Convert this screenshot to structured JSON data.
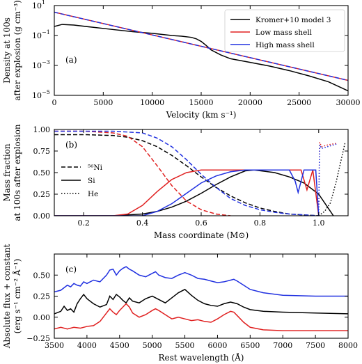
{
  "chart_data": [
    {
      "panel": "(a)",
      "type": "line",
      "xlabel": "Velocity (km s⁻¹)",
      "ylabel_line1": "Density at 100s",
      "ylabel_line2": "after explosion (g cm⁻³)",
      "xlim": [
        0,
        30000
      ],
      "ylim": [
        1e-05,
        10
      ],
      "yscale": "log",
      "xticks": [
        0,
        5000,
        10000,
        15000,
        20000,
        25000,
        30000
      ],
      "xticklabels": [
        "0",
        "5000",
        "10000",
        "15000",
        "20000",
        "25000",
        "30000"
      ],
      "yticks": [
        1e-05,
        0.001,
        0.1,
        10
      ],
      "yticklabels": [
        "10",
        "10",
        "10",
        "10"
      ],
      "yticklabels_exp": [
        "−5",
        "−3",
        "−1",
        "1"
      ],
      "legend_position": "top-right",
      "series": [
        {
          "name": "Kromer+10 model 3",
          "color": "#000000",
          "style": "solid",
          "x": [
            0,
            800,
            2000,
            4000,
            6000,
            8000,
            10000,
            12000,
            13000,
            14000,
            14500,
            15000,
            15500,
            16000,
            17000,
            18000,
            20000,
            22000,
            24000,
            26000,
            28000,
            30000
          ],
          "y": [
            0.4,
            0.55,
            0.5,
            0.35,
            0.25,
            0.18,
            0.14,
            0.1,
            0.09,
            0.075,
            0.06,
            0.04,
            0.022,
            0.011,
            0.005,
            0.0028,
            0.0016,
            0.0009,
            0.00045,
            0.0002,
            8e-05,
            2e-05
          ]
        },
        {
          "name": "Low mass shell",
          "color": "#e02020",
          "style": "solid",
          "x": [
            0,
            30000
          ],
          "y": [
            3.6,
            0.0001
          ]
        },
        {
          "name": "High mass shell",
          "color": "#2030e0",
          "style": "dashed",
          "x": [
            0,
            30000
          ],
          "y": [
            3.6,
            0.0001
          ]
        }
      ]
    },
    {
      "panel": "(b)",
      "type": "line",
      "xlabel": "Mass coordinate (M⊙)",
      "ylabel_line1": "Mass fraction",
      "ylabel_line2": "at 100s after explosion",
      "xlim": [
        0.1,
        1.1
      ],
      "ylim": [
        0,
        1.0
      ],
      "xticks": [
        0.2,
        0.4,
        0.6,
        0.8,
        1.0
      ],
      "xticklabels": [
        "0.2",
        "0.4",
        "0.6",
        "0.8",
        "1.0"
      ],
      "yticks": [
        0,
        0.25,
        0.5,
        0.75,
        1.0
      ],
      "yticklabels": [
        "0.00",
        "0.25",
        "0.50",
        "0.75",
        "1.00"
      ],
      "legend_position": "center-left",
      "legend": [
        {
          "label": "⁵⁶Ni",
          "style": "dashed"
        },
        {
          "label": "Si",
          "style": "solid"
        },
        {
          "label": "He",
          "style": "dotted"
        }
      ],
      "series": [
        {
          "element": "Ni",
          "model": "Kromer+10 model 3",
          "color": "#000000",
          "style": "dashed",
          "x": [
            0.1,
            0.2,
            0.3,
            0.35,
            0.4,
            0.45,
            0.5,
            0.55,
            0.6,
            0.65,
            0.7,
            0.75,
            0.8,
            0.85,
            0.9,
            0.95,
            1.0
          ],
          "y": [
            0.94,
            0.94,
            0.93,
            0.91,
            0.87,
            0.8,
            0.7,
            0.58,
            0.45,
            0.33,
            0.23,
            0.15,
            0.09,
            0.05,
            0.02,
            0.01,
            0.0
          ]
        },
        {
          "element": "Si",
          "model": "Kromer+10 model 3",
          "color": "#000000",
          "style": "solid",
          "x": [
            0.1,
            0.3,
            0.4,
            0.45,
            0.5,
            0.55,
            0.6,
            0.65,
            0.7,
            0.75,
            0.78,
            0.85,
            0.9,
            0.95,
            1.0,
            1.03,
            1.05
          ],
          "y": [
            0.0,
            0.0,
            0.02,
            0.05,
            0.1,
            0.17,
            0.26,
            0.36,
            0.45,
            0.52,
            0.53,
            0.5,
            0.45,
            0.38,
            0.25,
            0.1,
            0.0
          ]
        },
        {
          "element": "He",
          "model": "Kromer+10 model 3",
          "color": "#000000",
          "style": "dotted",
          "x": [
            1.0,
            1.02,
            1.04,
            1.06,
            1.08,
            1.09
          ],
          "y": [
            0.0,
            0.05,
            0.15,
            0.4,
            0.7,
            0.85
          ]
        },
        {
          "element": "Ni",
          "model": "Low mass shell",
          "color": "#e02020",
          "style": "dashed",
          "x": [
            0.1,
            0.2,
            0.3,
            0.35,
            0.4,
            0.45,
            0.5,
            0.55,
            0.6,
            0.65,
            0.7
          ],
          "y": [
            0.98,
            0.98,
            0.96,
            0.92,
            0.8,
            0.58,
            0.35,
            0.17,
            0.07,
            0.02,
            0.0
          ]
        },
        {
          "element": "Si",
          "model": "Low mass shell",
          "color": "#e02020",
          "style": "solid",
          "x": [
            0.1,
            0.3,
            0.35,
            0.4,
            0.45,
            0.5,
            0.55,
            0.6,
            0.65,
            0.7,
            0.94,
            0.96,
            0.98,
            1.0
          ],
          "y": [
            0.0,
            0.0,
            0.02,
            0.12,
            0.28,
            0.42,
            0.5,
            0.53,
            0.53,
            0.53,
            0.53,
            0.3,
            0.53,
            0.0
          ]
        },
        {
          "element": "He",
          "model": "Low mass shell",
          "color": "#e02020",
          "style": "dotted",
          "x": [
            1.0,
            1.003,
            1.01,
            1.03,
            1.06
          ],
          "y": [
            0.0,
            0.85,
            0.8,
            0.82,
            0.84
          ]
        },
        {
          "element": "Ni",
          "model": "High mass shell",
          "color": "#2030e0",
          "style": "dashed",
          "x": [
            0.1,
            0.2,
            0.3,
            0.4,
            0.45,
            0.5,
            0.55,
            0.6,
            0.65,
            0.7,
            0.75,
            0.8,
            0.85,
            0.9,
            0.95,
            1.0
          ],
          "y": [
            0.98,
            0.98,
            0.98,
            0.96,
            0.9,
            0.8,
            0.65,
            0.48,
            0.33,
            0.2,
            0.12,
            0.07,
            0.04,
            0.02,
            0.01,
            0.0
          ]
        },
        {
          "element": "Si",
          "model": "High mass shell",
          "color": "#2030e0",
          "style": "solid",
          "x": [
            0.1,
            0.4,
            0.45,
            0.5,
            0.55,
            0.6,
            0.65,
            0.7,
            0.75,
            0.8,
            0.9,
            0.92,
            0.93,
            0.94,
            0.95,
            0.99,
            1.0
          ],
          "y": [
            0.0,
            0.0,
            0.05,
            0.14,
            0.26,
            0.38,
            0.46,
            0.51,
            0.53,
            0.53,
            0.53,
            0.4,
            0.27,
            0.4,
            0.53,
            0.53,
            0.0
          ]
        },
        {
          "element": "He",
          "model": "High mass shell",
          "color": "#2030e0",
          "style": "dotted",
          "x": [
            1.0,
            1.003,
            1.01,
            1.03,
            1.06
          ],
          "y": [
            0.0,
            0.82,
            0.78,
            0.8,
            0.83
          ]
        }
      ]
    },
    {
      "panel": "(c)",
      "type": "line",
      "xlabel": "Rest wavelength (Å)",
      "ylabel_line1": "Absolute flux + constant",
      "ylabel_line2": "(erg s⁻¹ cm⁻² Å⁻¹)",
      "xlim": [
        3500,
        8000
      ],
      "ylim": [
        -0.25,
        0.75
      ],
      "xticks": [
        3500,
        4000,
        4500,
        5000,
        5500,
        6000,
        6500,
        7000,
        7500,
        8000
      ],
      "xticklabels": [
        "3500",
        "4000",
        "4500",
        "5000",
        "5500",
        "6000",
        "6500",
        "7000",
        "7500",
        "8000"
      ],
      "yticks": [
        -0.25,
        0.0,
        0.25,
        0.5
      ],
      "yticklabels": [
        "−0.25",
        "0.00",
        "0.25",
        "0.50"
      ],
      "series": [
        {
          "model": "High mass shell",
          "color": "#2030e0",
          "x": [
            3500,
            3600,
            3700,
            3750,
            3800,
            3850,
            3900,
            3950,
            4000,
            4100,
            4200,
            4300,
            4350,
            4400,
            4450,
            4500,
            4550,
            4600,
            4650,
            4700,
            4800,
            4900,
            5000,
            5050,
            5100,
            5200,
            5300,
            5400,
            5500,
            5600,
            5700,
            5800,
            5900,
            6000,
            6100,
            6200,
            6250,
            6300,
            6400,
            6500,
            6700,
            7000,
            7500,
            8000
          ],
          "y": [
            0.3,
            0.32,
            0.38,
            0.36,
            0.4,
            0.38,
            0.37,
            0.42,
            0.4,
            0.44,
            0.42,
            0.5,
            0.56,
            0.57,
            0.5,
            0.55,
            0.58,
            0.6,
            0.57,
            0.55,
            0.5,
            0.48,
            0.52,
            0.54,
            0.5,
            0.47,
            0.46,
            0.5,
            0.53,
            0.5,
            0.46,
            0.45,
            0.43,
            0.41,
            0.42,
            0.44,
            0.45,
            0.43,
            0.38,
            0.33,
            0.29,
            0.26,
            0.25,
            0.25
          ]
        },
        {
          "model": "Kromer+10 model 3",
          "color": "#000000",
          "x": [
            3500,
            3600,
            3650,
            3700,
            3750,
            3800,
            3850,
            3900,
            3950,
            4000,
            4100,
            4200,
            4300,
            4350,
            4400,
            4450,
            4500,
            4550,
            4600,
            4650,
            4700,
            4800,
            4900,
            5000,
            5100,
            5200,
            5300,
            5400,
            5500,
            5600,
            5700,
            5800,
            5900,
            6000,
            6100,
            6200,
            6300,
            6400,
            6500,
            6700,
            7000,
            7500,
            8000
          ],
          "y": [
            0.04,
            0.07,
            0.13,
            0.08,
            0.1,
            0.06,
            0.16,
            0.22,
            0.27,
            0.22,
            0.16,
            0.12,
            0.15,
            0.25,
            0.21,
            0.27,
            0.24,
            0.2,
            0.17,
            0.23,
            0.19,
            0.17,
            0.22,
            0.25,
            0.21,
            0.17,
            0.23,
            0.29,
            0.33,
            0.26,
            0.2,
            0.16,
            0.14,
            0.13,
            0.16,
            0.18,
            0.16,
            0.12,
            0.09,
            0.07,
            0.06,
            0.05,
            0.04
          ]
        },
        {
          "model": "Low mass shell",
          "color": "#e02020",
          "x": [
            3500,
            3600,
            3700,
            3800,
            3900,
            4000,
            4100,
            4200,
            4300,
            4350,
            4400,
            4450,
            4500,
            4550,
            4600,
            4650,
            4700,
            4800,
            4900,
            5000,
            5050,
            5100,
            5200,
            5300,
            5400,
            5500,
            5600,
            5700,
            5800,
            5900,
            6000,
            6100,
            6200,
            6250,
            6300,
            6400,
            6500,
            6700,
            7000,
            7500,
            8000
          ],
          "y": [
            -0.14,
            -0.12,
            -0.14,
            -0.12,
            -0.13,
            -0.11,
            -0.1,
            -0.05,
            0.05,
            0.1,
            0.06,
            0.03,
            0.08,
            0.12,
            0.16,
            0.12,
            0.05,
            0.0,
            0.03,
            0.08,
            0.1,
            0.08,
            0.03,
            -0.02,
            0.0,
            -0.02,
            -0.04,
            -0.03,
            -0.05,
            -0.06,
            -0.02,
            0.03,
            0.07,
            0.06,
            0.02,
            -0.06,
            -0.12,
            -0.15,
            -0.16,
            -0.16,
            -0.16
          ]
        }
      ]
    }
  ]
}
